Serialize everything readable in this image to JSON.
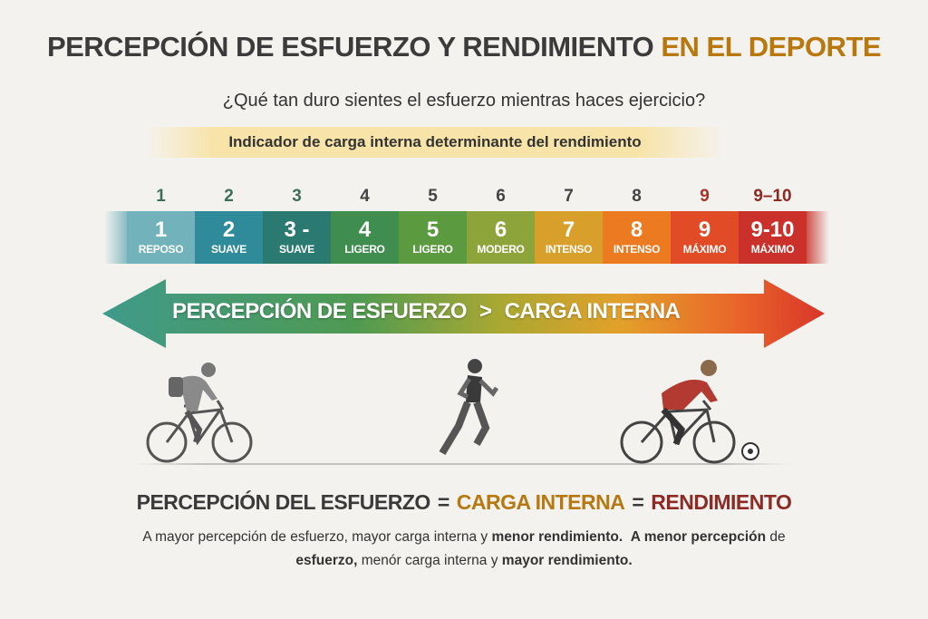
{
  "title": {
    "main": "PERCEPCIÓN DE ESFUERZO Y RENDIMIENTO",
    "accent": "EN EL DEPORTE"
  },
  "subtitle": "¿Qué tan duro sientes el esfuerzo mientras haces ejercicio?",
  "banner": "Indicador de carga interna determinante del rendimiento",
  "scale": [
    {
      "top": "1",
      "num": "1",
      "label": "REPOSO",
      "color": "#72b2ba",
      "top_color": "#3d6e5c"
    },
    {
      "top": "2",
      "num": "2",
      "label": "SUAVE",
      "color": "#2f8b9a",
      "top_color": "#3d6e5c"
    },
    {
      "top": "3",
      "num": "3 -",
      "label": "SUAVE",
      "color": "#2b7a72",
      "top_color": "#3d6e5c"
    },
    {
      "top": "4",
      "num": "4",
      "label": "LIGERO",
      "color": "#3f8d4f",
      "top_color": "#444444"
    },
    {
      "top": "5",
      "num": "5",
      "label": "LIGERO",
      "color": "#5b9a3f",
      "top_color": "#444444"
    },
    {
      "top": "6",
      "num": "6",
      "label": "MODERO",
      "color": "#8ca43a",
      "top_color": "#444444"
    },
    {
      "top": "7",
      "num": "7",
      "label": "INTENSO",
      "color": "#d99f2b",
      "top_color": "#444444"
    },
    {
      "top": "8",
      "num": "8",
      "label": "INTENSO",
      "color": "#ec7a20",
      "top_color": "#444444"
    },
    {
      "top": "9",
      "num": "9",
      "label": "MÁXIMO",
      "color": "#e14b26",
      "top_color": "#a83228"
    },
    {
      "top": "9–10",
      "num": "9-10",
      "label": "MÁXIMO",
      "color": "#c9312a",
      "top_color": "#8c2a22"
    }
  ],
  "arrow": {
    "left": "PERCEPCIÓN DE ESFUERZO",
    "symbol": ">",
    "right": "CARGA INTERNA"
  },
  "equation": {
    "a": "PERCEPCIÓN DEL ESFUERZO",
    "eq": "=",
    "b": "CARGA INTERNA",
    "c": "RENDIMIENTO"
  },
  "body": {
    "l1a": "A mayor percepción de esfuerzo, mayor carga interna y ",
    "l1b": "menor rendimiento.",
    "l1c": "  ",
    "l1d": "A menor percepción",
    "l1e": " de",
    "l2a": "esfuerzo,",
    "l2b": " menór carga interna y ",
    "l2c": "mayor rendimiento."
  },
  "figures": [
    "cyclist-relaxed",
    "runner",
    "cyclist-intense"
  ]
}
